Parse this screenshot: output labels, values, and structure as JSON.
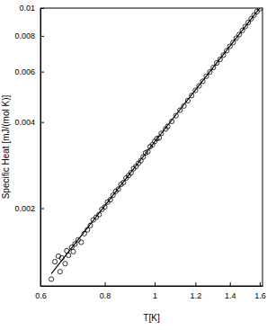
{
  "chart_data": {
    "type": "scatter",
    "log": true,
    "grid": false,
    "x_label": "T[K]",
    "y_label": "Specific Heat [mJ/(mol K)]",
    "xlim": [
      0.6,
      1.62
    ],
    "ylim": [
      0.00107,
      0.01
    ],
    "xticks": [
      0.6,
      0.8,
      1,
      1.2,
      1.4,
      1.6
    ],
    "yticks": [
      0.002,
      0.004,
      0.006,
      0.008,
      0.01
    ],
    "series": [
      {
        "type": "scatter",
        "marker": "circle",
        "color": "#000000",
        "x": [
          0.63,
          0.64,
          0.65,
          0.655,
          0.66,
          0.67,
          0.675,
          0.68,
          0.69,
          0.695,
          0.7,
          0.71,
          0.72,
          0.73,
          0.74,
          0.75,
          0.76,
          0.77,
          0.78,
          0.79,
          0.8,
          0.81,
          0.82,
          0.83,
          0.84,
          0.85,
          0.86,
          0.87,
          0.88,
          0.89,
          0.9,
          0.91,
          0.92,
          0.93,
          0.94,
          0.95,
          0.96,
          0.97,
          0.98,
          0.99,
          1.0,
          1.01,
          1.02,
          1.03,
          1.05,
          1.06,
          1.08,
          1.1,
          1.12,
          1.14,
          1.16,
          1.18,
          1.2,
          1.22,
          1.24,
          1.26,
          1.28,
          1.3,
          1.32,
          1.34,
          1.36,
          1.38,
          1.4,
          1.42,
          1.44,
          1.46,
          1.48,
          1.5,
          1.52,
          1.54,
          1.56,
          1.58,
          1.6
        ],
        "values": [
          0.00113,
          0.0013,
          0.00136,
          0.0012,
          0.00134,
          0.00128,
          0.00142,
          0.00137,
          0.00146,
          0.00141,
          0.0015,
          0.00155,
          0.00152,
          0.00163,
          0.00168,
          0.00174,
          0.00182,
          0.00186,
          0.0019,
          0.00198,
          0.00202,
          0.0021,
          0.00214,
          0.00222,
          0.00229,
          0.00233,
          0.00242,
          0.00246,
          0.00255,
          0.0026,
          0.00266,
          0.00275,
          0.0028,
          0.00287,
          0.00293,
          0.00302,
          0.00312,
          0.00315,
          0.00328,
          0.00333,
          0.00342,
          0.0035,
          0.00352,
          0.00365,
          0.00378,
          0.00386,
          0.00402,
          0.00421,
          0.0044,
          0.00455,
          0.00475,
          0.00495,
          0.00516,
          0.00535,
          0.00555,
          0.00578,
          0.00598,
          0.0062,
          0.00643,
          0.00662,
          0.00685,
          0.0071,
          0.00735,
          0.00758,
          0.00785,
          0.00808,
          0.00835,
          0.00862,
          0.0089,
          0.00918,
          0.00945,
          0.00972,
          0.00995
        ]
      },
      {
        "type": "line",
        "line_style": "solid",
        "color": "#000000",
        "x": [
          0.63,
          0.8,
          1.0,
          1.2,
          1.4,
          1.6
        ],
        "values": [
          0.00118,
          0.00204,
          0.00341,
          0.00517,
          0.00736,
          0.01
        ]
      }
    ]
  }
}
